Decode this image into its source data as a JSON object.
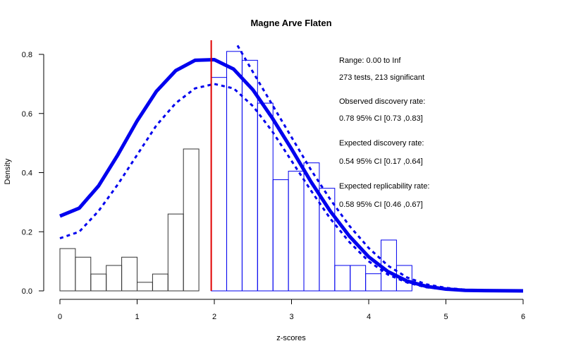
{
  "chart_data": {
    "type": "bar",
    "title": "Magne Arve Flaten",
    "xlabel": "z-scores",
    "ylabel": "Density",
    "xlim": [
      0,
      6
    ],
    "ylim": [
      0,
      0.8
    ],
    "x_ticks": [
      "0",
      "1",
      "2",
      "3",
      "4",
      "5",
      "6"
    ],
    "y_ticks": [
      "0.0",
      "0.2",
      "0.4",
      "0.6",
      "0.8"
    ],
    "grid": false,
    "bin_width": 0.2,
    "histogram_nonsignificant": {
      "x": [
        0.0,
        0.2,
        0.4,
        0.6,
        0.8,
        1.0,
        1.2,
        1.4,
        1.6,
        1.8
      ],
      "values": [
        0.143,
        0.114,
        0.057,
        0.086,
        0.114,
        0.029,
        0.057,
        0.26,
        0.48,
        0.0
      ]
    },
    "histogram_significant": {
      "x": [
        1.96,
        2.16,
        2.36,
        2.56,
        2.76,
        2.96,
        3.16,
        3.36,
        3.56,
        3.76,
        3.96,
        4.16,
        4.36
      ],
      "values": [
        0.722,
        0.81,
        0.78,
        0.635,
        0.376,
        0.405,
        0.433,
        0.347,
        0.086,
        0.086,
        0.058,
        0.172,
        0.086
      ]
    },
    "significance_line": {
      "x": 1.96,
      "color": "#e00000"
    },
    "series": [
      {
        "style": "solid",
        "color": "#0000ee",
        "x": [
          0.0,
          0.25,
          0.5,
          0.75,
          1.0,
          1.25,
          1.5,
          1.75,
          2.0,
          2.25,
          2.5,
          2.75,
          3.0,
          3.25,
          3.5,
          3.75,
          4.0,
          4.25,
          4.5,
          4.75,
          5.0,
          5.25,
          5.5,
          6.0
        ],
        "y": [
          0.253,
          0.28,
          0.355,
          0.46,
          0.575,
          0.675,
          0.745,
          0.78,
          0.782,
          0.75,
          0.68,
          0.585,
          0.48,
          0.37,
          0.27,
          0.185,
          0.115,
          0.065,
          0.033,
          0.015,
          0.006,
          0.002,
          0.001,
          0.0
        ]
      },
      {
        "style": "dotted",
        "color": "#0000ee",
        "x": [
          0.0,
          0.25,
          0.5,
          0.75,
          1.0,
          1.25,
          1.5,
          1.75,
          2.0,
          2.25,
          2.5,
          2.75,
          3.0,
          3.25,
          3.5,
          3.75,
          4.0,
          4.25,
          4.5,
          4.75,
          5.0,
          5.25,
          5.5,
          6.0
        ],
        "y": [
          0.178,
          0.2,
          0.27,
          0.36,
          0.46,
          0.56,
          0.635,
          0.685,
          0.7,
          0.685,
          0.625,
          0.54,
          0.44,
          0.34,
          0.245,
          0.165,
          0.1,
          0.055,
          0.028,
          0.012,
          0.005,
          0.002,
          0.001,
          0.0
        ]
      },
      {
        "style": "dotted",
        "color": "#0000ee",
        "x": [
          2.3,
          2.5,
          2.75,
          3.0,
          3.25,
          3.5,
          3.75,
          4.0,
          4.25,
          4.5,
          4.75,
          5.0,
          5.25,
          5.5,
          6.0
        ],
        "y": [
          0.83,
          0.74,
          0.63,
          0.52,
          0.41,
          0.31,
          0.22,
          0.145,
          0.085,
          0.045,
          0.022,
          0.01,
          0.004,
          0.001,
          0.0
        ]
      }
    ],
    "annotations": [
      "Range: 0.00 to Inf",
      "273 tests, 213 significant",
      "Observed discovery rate:",
      "0.78  95% CI [0.73 ,0.83]",
      "Expected discovery rate:",
      "0.54  95% CI [0.17 ,0.64]",
      "Expected replicability rate:",
      "0.58  95% CI [0.46 ,0.67]"
    ]
  }
}
